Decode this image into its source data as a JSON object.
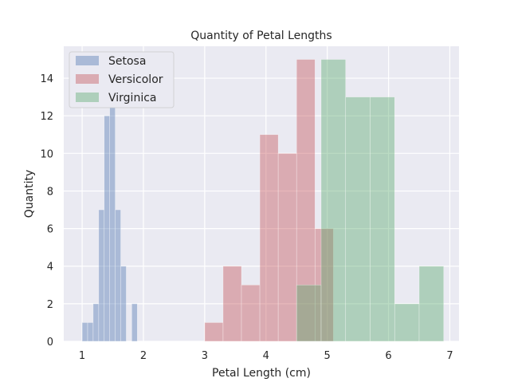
{
  "chart_data": {
    "type": "bar",
    "title": "Quantity of Petal Lengths",
    "xlabel": "Petal Length (cm)",
    "ylabel": "Quantity",
    "xlim": [
      0.7,
      7.15
    ],
    "ylim": [
      0,
      15.7
    ],
    "xticks": [
      1,
      2,
      3,
      4,
      5,
      6,
      7
    ],
    "yticks": [
      0,
      2,
      4,
      6,
      8,
      10,
      12,
      14
    ],
    "grid": true,
    "legend_position": "top-left",
    "series": [
      {
        "name": "Setosa",
        "color": "#4c72b0",
        "bins": [
          {
            "x0": 1.0,
            "x1": 1.09,
            "count": 1
          },
          {
            "x0": 1.09,
            "x1": 1.18,
            "count": 1
          },
          {
            "x0": 1.18,
            "x1": 1.27,
            "count": 2
          },
          {
            "x0": 1.27,
            "x1": 1.36,
            "count": 7
          },
          {
            "x0": 1.36,
            "x1": 1.45,
            "count": 12
          },
          {
            "x0": 1.45,
            "x1": 1.54,
            "count": 14
          },
          {
            "x0": 1.54,
            "x1": 1.63,
            "count": 7
          },
          {
            "x0": 1.63,
            "x1": 1.72,
            "count": 4
          },
          {
            "x0": 1.72,
            "x1": 1.81,
            "count": 0
          },
          {
            "x0": 1.81,
            "x1": 1.9,
            "count": 2
          }
        ]
      },
      {
        "name": "Versicolor",
        "color": "#c44e52",
        "bins": [
          {
            "x0": 3.0,
            "x1": 3.3,
            "count": 1
          },
          {
            "x0": 3.3,
            "x1": 3.6,
            "count": 4
          },
          {
            "x0": 3.6,
            "x1": 3.9,
            "count": 3
          },
          {
            "x0": 3.9,
            "x1": 4.2,
            "count": 11
          },
          {
            "x0": 4.2,
            "x1": 4.5,
            "count": 10
          },
          {
            "x0": 4.5,
            "x1": 4.8,
            "count": 15
          },
          {
            "x0": 4.8,
            "x1": 5.1,
            "count": 6
          }
        ]
      },
      {
        "name": "Virginica",
        "color": "#55a868",
        "bins": [
          {
            "x0": 4.5,
            "x1": 4.9,
            "count": 3
          },
          {
            "x0": 4.9,
            "x1": 5.3,
            "count": 15
          },
          {
            "x0": 5.3,
            "x1": 5.7,
            "count": 13
          },
          {
            "x0": 5.7,
            "x1": 6.1,
            "count": 13
          },
          {
            "x0": 6.1,
            "x1": 6.5,
            "count": 2
          },
          {
            "x0": 6.5,
            "x1": 6.9,
            "count": 4
          }
        ]
      }
    ]
  }
}
